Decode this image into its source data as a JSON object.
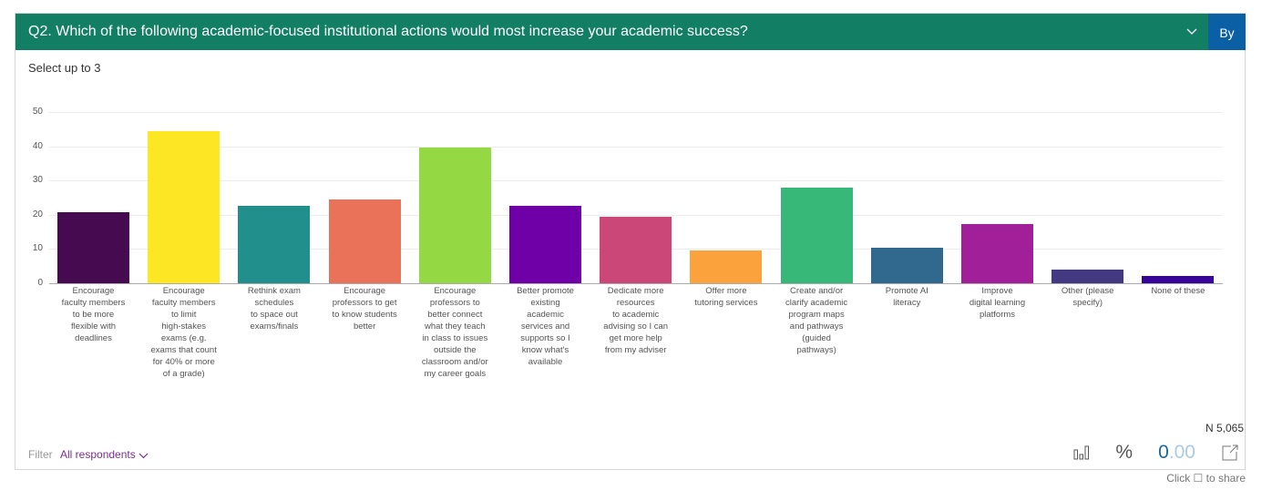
{
  "header": {
    "question": "Q2. Which of the following academic-focused institutional actions would most increase your academic success?",
    "by_button": "By",
    "colors": {
      "header_bg": "#127e64",
      "by_bg": "#0b5fa5"
    }
  },
  "subtitle": "Select up to 3",
  "footer": {
    "filter_label": "Filter",
    "filter_value": "All respondents",
    "n_count": "N 5,065",
    "percent_symbol": "%",
    "decimals_whole": "0",
    "decimals_frac": ".00",
    "share_hint": "Click ☐ to share"
  },
  "chart_data": {
    "type": "bar",
    "title": "Q2. Which of the following academic-focused institutional actions would most increase your academic success?",
    "subtitle": "Select up to 3",
    "xlabel": "",
    "ylabel": "",
    "ylim": [
      0,
      50
    ],
    "yticks": [
      0,
      10,
      20,
      30,
      40,
      50
    ],
    "grid": true,
    "legend": "none",
    "categories": [
      "Encourage faculty members to be more flexible with deadlines",
      "Encourage faculty members to limit high-stakes exams (e.g. exams that count for 40% or more of a grade)",
      "Rethink exam schedules to space out exams/finals",
      "Encourage professors to get to know students better",
      "Encourage professors to better connect what they teach in class to issues outside the classroom and/or my career goals",
      "Better promote existing academic services and supports so I know what's available",
      "Dedicate more resources to academic advising so I can get more help from my adviser",
      "Offer more tutoring services",
      "Create and/or clarify academic program maps and pathways (guided pathways)",
      "Promote AI literacy",
      "Improve digital learning platforms",
      "Other (please specify)",
      "None of these"
    ],
    "display_labels": [
      "Encourage\nfaculty members\nto be more\nflexible with\ndeadlines",
      "Encourage\nfaculty members\nto limit\nhigh-stakes\nexams (e.g.\nexams that count\nfor 40% or more\nof a grade)",
      "Rethink exam\nschedules\nto space out\nexams/finals",
      "Encourage\nprofessors to get\nto know students\nbetter",
      "Encourage\nprofessors to\nbetter connect\nwhat they teach\nin class to issues\noutside the\nclassroom and/or\nmy career goals",
      "Better promote\nexisting\nacademic\nservices and\nsupports so I\nknow what's\navailable",
      "Dedicate more\nresources\nto academic\nadvising so I can\nget more help\nfrom my adviser",
      "Offer more\ntutoring services",
      "Create and/or\nclarify academic\nprogram maps\nand pathways\n(guided\npathways)",
      "Promote AI\nliteracy",
      "Improve\ndigital learning\nplatforms",
      "Other (please\nspecify)",
      "None of these"
    ],
    "values": [
      20.8,
      44.5,
      22.7,
      24.5,
      39.5,
      22.7,
      19.5,
      9.6,
      27.8,
      10.4,
      17.3,
      4.0,
      2.2
    ],
    "colors": [
      "#450a4f",
      "#fde724",
      "#21908d",
      "#e97258",
      "#94d843",
      "#6f00a8",
      "#cb4778",
      "#fba23c",
      "#37b878",
      "#31688e",
      "#a21f9a",
      "#433982",
      "#38039a"
    ]
  }
}
